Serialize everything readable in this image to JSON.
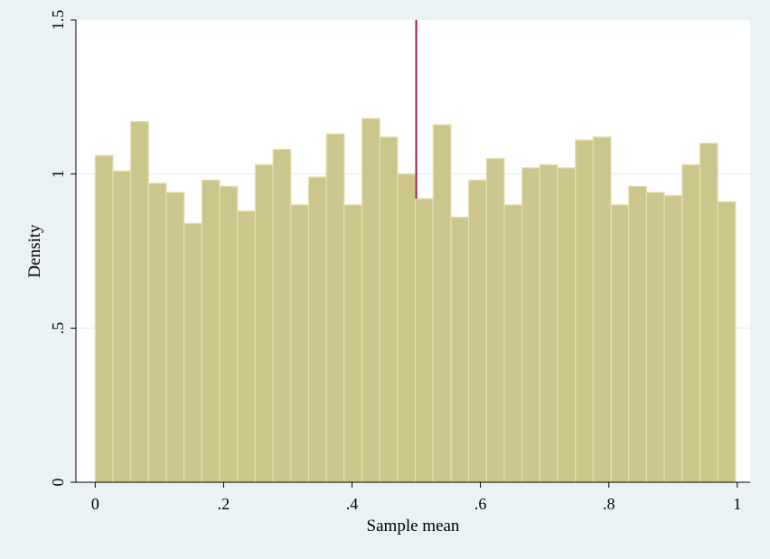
{
  "chart_data": {
    "type": "bar",
    "title": "",
    "xlabel": "Sample mean",
    "ylabel": "Density",
    "xlim": [
      -0.03,
      1.02
    ],
    "ylim": [
      0,
      1.5
    ],
    "xticks": [
      0,
      0.2,
      0.4,
      0.6,
      0.8,
      1
    ],
    "xtick_labels": [
      "0",
      ".2",
      ".4",
      ".6",
      ".8",
      "1"
    ],
    "yticks": [
      0,
      0.5,
      1,
      1.5
    ],
    "ytick_labels": [
      "0",
      ".5",
      "1",
      "1.5"
    ],
    "grid": "horizontal",
    "bin_start": 0,
    "bin_width": 0.0277,
    "values": [
      1.06,
      1.01,
      1.17,
      0.97,
      0.94,
      0.84,
      0.98,
      0.96,
      0.88,
      1.03,
      1.08,
      0.9,
      0.99,
      1.13,
      0.9,
      1.18,
      1.12,
      1.0,
      0.92,
      1.16,
      0.86,
      0.98,
      1.05,
      0.9,
      1.02,
      1.03,
      1.02,
      1.11,
      1.12,
      0.9,
      0.96,
      0.94,
      0.93,
      1.03,
      1.1,
      0.91
    ],
    "reference_line_x": 0.5,
    "colors": {
      "bar_fill": "#cdc68c",
      "bar_edge": "#e4dfb2",
      "reference_line": "#b0134a",
      "plot_background": "#ffffff",
      "grid": "#eaf2f3",
      "figure_background": "#eaf2f3"
    }
  }
}
